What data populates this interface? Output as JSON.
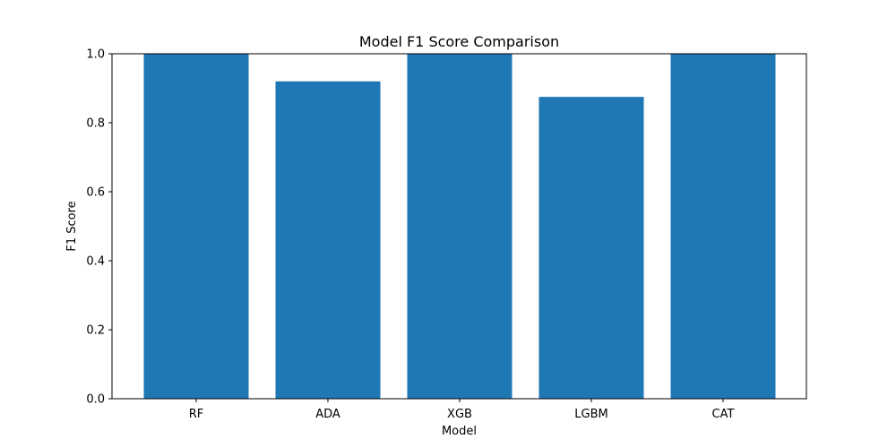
{
  "chart_data": {
    "type": "bar",
    "title": "Model F1 Score Comparison",
    "xlabel": "Model",
    "ylabel": "F1 Score",
    "categories": [
      "RF",
      "ADA",
      "XGB",
      "LGBM",
      "CAT"
    ],
    "values": [
      1.0,
      0.92,
      1.0,
      0.875,
      1.0
    ],
    "ylim": [
      0.0,
      1.0
    ],
    "yticks": [
      "0.0",
      "0.2",
      "0.4",
      "0.6",
      "0.8",
      "1.0"
    ],
    "bar_color": "#1f77b4",
    "grid": false,
    "legend": "none"
  }
}
